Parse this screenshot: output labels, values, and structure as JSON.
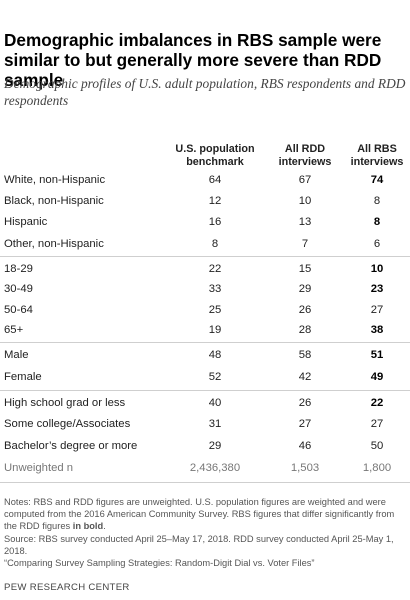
{
  "title": "Demographic imbalances in RBS sample were similar to but generally more severe than RDD sample",
  "subtitle": "Demographic profiles of U.S. adult population, RBS respondents and RDD respondents",
  "columns": [
    {
      "line1": "U.S. population",
      "line2": "benchmark"
    },
    {
      "line1": "All RDD",
      "line2": "interviews"
    },
    {
      "line1": "All RBS",
      "line2": "interviews"
    }
  ],
  "rows": [
    {
      "label": "White, non-Hispanic",
      "benchmark": "64",
      "rdd": "67",
      "rbs": "74",
      "rbs_bold": true
    },
    {
      "label": "Black, non-Hispanic",
      "benchmark": "12",
      "rdd": "10",
      "rbs": "8",
      "rbs_bold": false
    },
    {
      "label": "Hispanic",
      "benchmark": "16",
      "rdd": "13",
      "rbs": "8",
      "rbs_bold": true
    },
    {
      "label": "Other, non-Hispanic",
      "benchmark": "8",
      "rdd": "7",
      "rbs": "6",
      "rbs_bold": false
    },
    {
      "label": "18-29",
      "benchmark": "22",
      "rdd": "15",
      "rbs": "10",
      "rbs_bold": true
    },
    {
      "label": "30-49",
      "benchmark": "33",
      "rdd": "29",
      "rbs": "23",
      "rbs_bold": true
    },
    {
      "label": "50-64",
      "benchmark": "25",
      "rdd": "26",
      "rbs": "27",
      "rbs_bold": false
    },
    {
      "label": "65+",
      "benchmark": "19",
      "rdd": "28",
      "rbs": "38",
      "rbs_bold": true
    },
    {
      "label": "Male",
      "benchmark": "48",
      "rdd": "58",
      "rbs": "51",
      "rbs_bold": true
    },
    {
      "label": "Female",
      "benchmark": "52",
      "rdd": "42",
      "rbs": "49",
      "rbs_bold": true
    },
    {
      "label": "High school grad or less",
      "benchmark": "40",
      "rdd": "26",
      "rbs": "22",
      "rbs_bold": true
    },
    {
      "label": "Some college/Associates",
      "benchmark": "31",
      "rdd": "27",
      "rbs": "27",
      "rbs_bold": false
    },
    {
      "label": "Bachelor’s degree or more",
      "benchmark": "29",
      "rdd": "46",
      "rbs": "50",
      "rbs_bold": false
    }
  ],
  "unweighted": {
    "label": "Unweighted n",
    "benchmark": "2,436,380",
    "rdd": "1,503",
    "rbs": "1,800"
  },
  "notes": {
    "note_text": "Notes: RBS and RDD figures are unweighted. U.S. population figures are weighted and were computed from the 2016 American Community Survey. RBS figures that differ significantly from the RDD figures ",
    "note_bold": "in bold",
    "note_end": ".",
    "source": "Source: RBS survey conducted April 25–May 17, 2018. RDD survey conducted April 25-May 1, 2018.",
    "report": "“Comparing Survey Sampling Strategies: Random-Digit Dial vs. Voter Files”"
  },
  "footer": "PEW RESEARCH CENTER"
}
